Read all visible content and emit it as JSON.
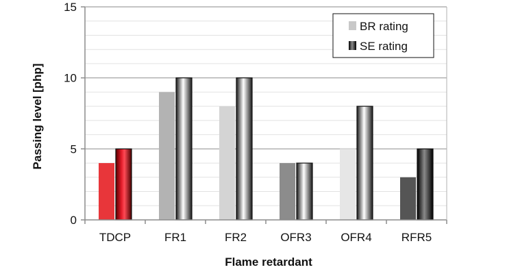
{
  "chart_data": {
    "type": "bar",
    "xlabel": "Flame retardant",
    "ylabel": "Passing level [php]",
    "categories": [
      "TDCP",
      "FR1",
      "FR2",
      "OFR3",
      "OFR4",
      "RFR5"
    ],
    "series": [
      {
        "name": "BR rating",
        "values": [
          4,
          9,
          8,
          4,
          5,
          3
        ]
      },
      {
        "name": "SE rating",
        "values": [
          5,
          10,
          10,
          4,
          8,
          5
        ]
      }
    ],
    "ylim": [
      0,
      15
    ],
    "yticks": [
      0,
      5,
      10,
      15
    ],
    "grid": true,
    "legend": "top-right",
    "colors": {
      "br_bars": [
        "#e8363a",
        "#b3b3b3",
        "#d4d4d4",
        "#8c8c8c",
        "#e6e6e6",
        "#555555"
      ],
      "se_bars": [
        "#c41e2a",
        "#808080",
        "#808080",
        "#707070",
        "#a0a0a0",
        "#2a2a2a"
      ],
      "legend_br": "#c8c8c8",
      "legend_se": "#5a5a5a",
      "grid": "#c8c8c8",
      "axis": "#8c8c8c"
    }
  }
}
